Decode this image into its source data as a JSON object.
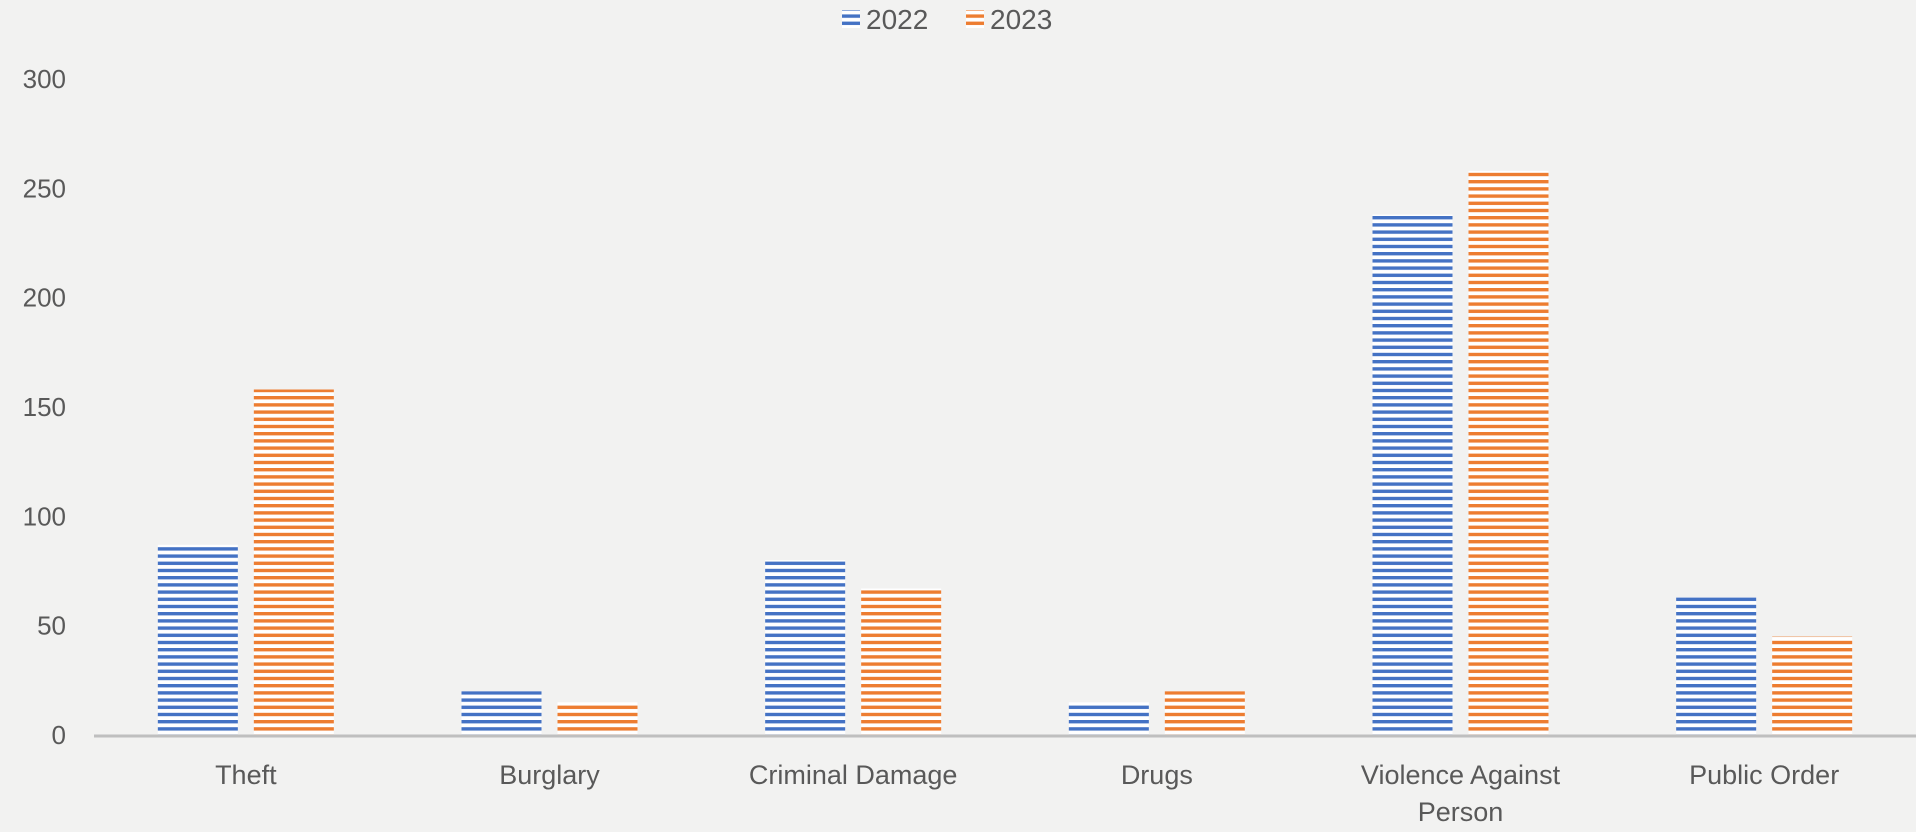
{
  "chart_data": {
    "type": "bar",
    "categories": [
      "Theft",
      "Burglary",
      "Criminal Damage",
      "Drugs",
      "Violence Against Person",
      "Public Order"
    ],
    "category_lines": [
      [
        "Theft"
      ],
      [
        "Burglary"
      ],
      [
        "Criminal Damage"
      ],
      [
        "Drugs"
      ],
      [
        "Violence Against",
        "Person"
      ],
      [
        "Public Order"
      ]
    ],
    "series": [
      {
        "name": "2022",
        "values": [
          87,
          20,
          80,
          15,
          238,
          63
        ],
        "color": "#4472c4",
        "pattern": "horizontal-stripes"
      },
      {
        "name": "2023",
        "values": [
          158,
          15,
          67,
          20,
          258,
          45
        ],
        "color": "#ed7d31",
        "pattern": "horizontal-stripes"
      }
    ],
    "title": "",
    "xlabel": "",
    "ylabel": "",
    "ylim": [
      0,
      300
    ],
    "yticks": [
      0,
      50,
      100,
      150,
      200,
      250,
      300
    ],
    "ytick_labels": [
      "0",
      "50",
      "100",
      "150",
      "200",
      "250",
      "300"
    ],
    "grid": false,
    "legend_position": "top-center",
    "background": "#f2f2f1",
    "axis_color": "#bfbfbf"
  }
}
